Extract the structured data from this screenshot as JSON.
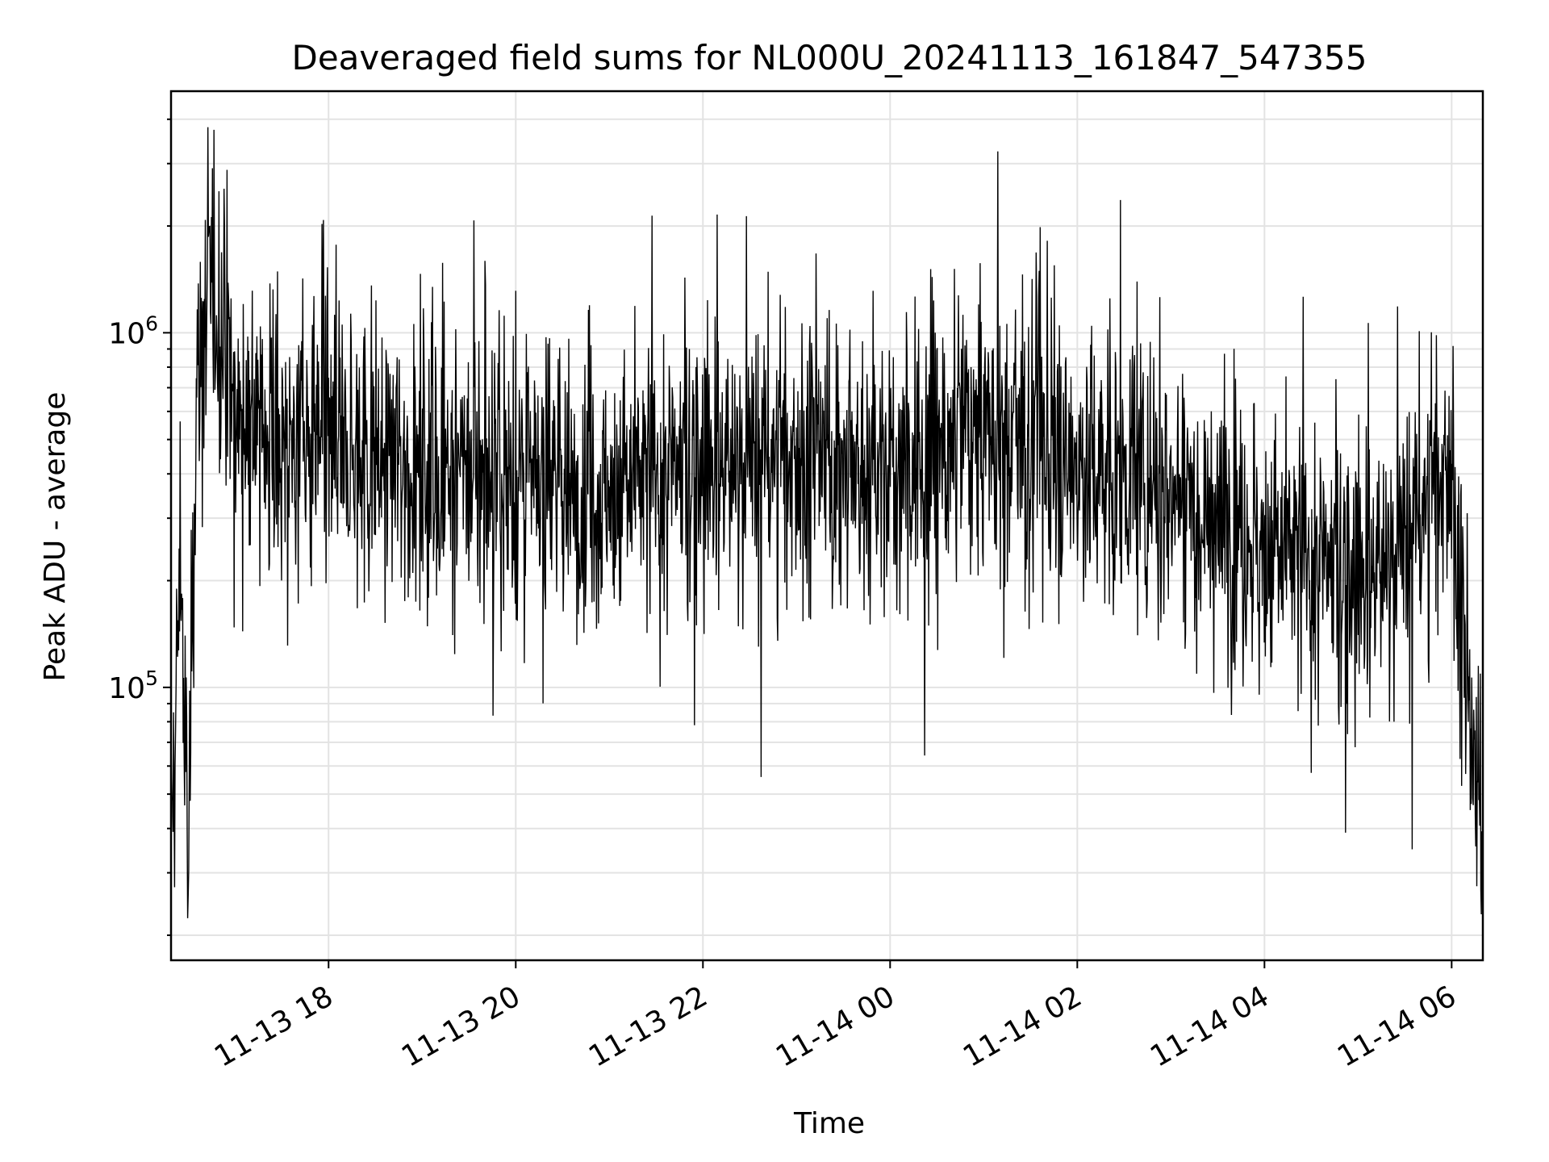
{
  "chart_data": {
    "type": "line",
    "title": "Deaveraged field sums for NL000U_20241113_161847_547355",
    "xlabel": "Time",
    "ylabel": "Peak ADU - average",
    "x_axis": {
      "type": "datetime",
      "range": [
        "2024-11-13 16:19",
        "2024-11-14 06:20"
      ],
      "ticks": [
        "11-13 18",
        "11-13 20",
        "11-13 22",
        "11-14 00",
        "11-14 02",
        "11-14 04",
        "11-14 06"
      ],
      "tick_values": [
        "2024-11-13 18:00",
        "2024-11-13 20:00",
        "2024-11-13 22:00",
        "2024-11-14 00:00",
        "2024-11-14 02:00",
        "2024-11-14 04:00",
        "2024-11-14 06:00"
      ],
      "tick_rotation_deg": 30
    },
    "y_axis": {
      "scale": "log",
      "range": [
        17000,
        4800000
      ],
      "major_ticks": [
        100000,
        1000000
      ],
      "major_tick_labels": [
        {
          "base": "10",
          "exp": "5"
        },
        {
          "base": "10",
          "exp": "6"
        }
      ],
      "minor_ticks": [
        20000,
        30000,
        40000,
        50000,
        60000,
        70000,
        80000,
        90000,
        200000,
        300000,
        400000,
        500000,
        600000,
        700000,
        800000,
        900000,
        2000000,
        3000000,
        4000000
      ]
    },
    "grid": true,
    "series": [
      {
        "color": "#000000",
        "approx_points": [
          {
            "x": "2024-11-13 16:20",
            "y": 40000
          },
          {
            "x": "2024-11-13 16:25",
            "y": 250000
          },
          {
            "x": "2024-11-13 16:30",
            "y": 30000
          },
          {
            "x": "2024-11-13 16:35",
            "y": 600000
          },
          {
            "x": "2024-11-13 16:45",
            "y": 1500000
          },
          {
            "x": "2024-11-13 17:00",
            "y": 600000
          },
          {
            "x": "2024-11-13 17:30",
            "y": 500000
          },
          {
            "x": "2024-11-13 18:00",
            "y": 450000
          },
          {
            "x": "2024-11-13 19:00",
            "y": 420000
          },
          {
            "x": "2024-11-13 20:00",
            "y": 380000
          },
          {
            "x": "2024-11-13 21:00",
            "y": 360000
          },
          {
            "x": "2024-11-13 22:00",
            "y": 420000
          },
          {
            "x": "2024-11-13 23:00",
            "y": 450000
          },
          {
            "x": "2024-11-14 00:00",
            "y": 380000
          },
          {
            "x": "2024-11-14 01:00",
            "y": 550000
          },
          {
            "x": "2024-11-14 02:00",
            "y": 420000
          },
          {
            "x": "2024-11-14 03:00",
            "y": 380000
          },
          {
            "x": "2024-11-14 04:00",
            "y": 250000
          },
          {
            "x": "2024-11-14 05:00",
            "y": 200000
          },
          {
            "x": "2024-11-14 05:30",
            "y": 250000
          },
          {
            "x": "2024-11-14 06:00",
            "y": 450000
          },
          {
            "x": "2024-11-14 06:10",
            "y": 80000
          },
          {
            "x": "2024-11-14 06:20",
            "y": 35000
          }
        ],
        "y_range": [
          20000,
          3800000
        ]
      }
    ]
  }
}
